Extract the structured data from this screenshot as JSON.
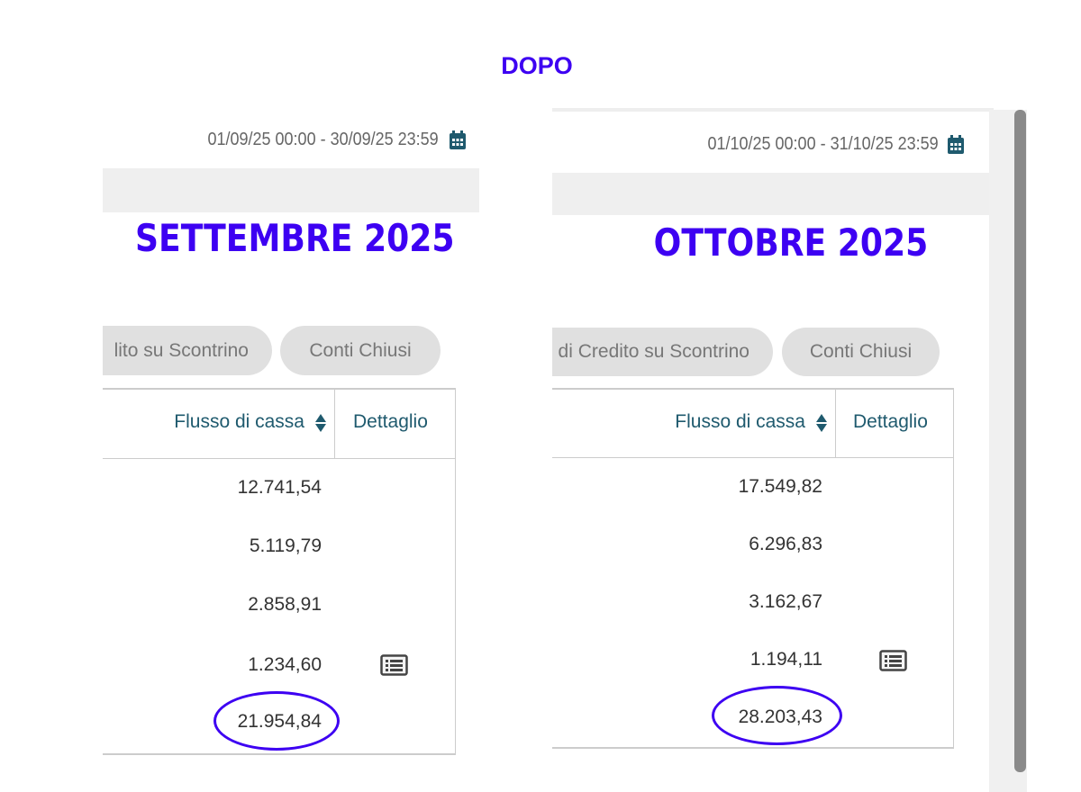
{
  "heading": "DOPO",
  "colors": {
    "accent": "#3d00f2",
    "header_text": "#1f5a6e",
    "calendar_icon": "#1f5a6e"
  },
  "panels": [
    {
      "date_range": "01/09/25 00:00 - 30/09/25 23:59",
      "title": "SETTEMBRE 2025",
      "tabs": [
        "lito su Scontrino",
        "Conti Chiusi"
      ],
      "columns": [
        "Flusso di cassa",
        "Dettaglio"
      ],
      "rows": [
        "12.741,54",
        "5.119,79",
        "2.858,91",
        "1.234,60"
      ],
      "total": "21.954,84",
      "detail_icon": "list-icon"
    },
    {
      "date_range": "01/10/25 00:00 - 31/10/25 23:59",
      "title": "OTTOBRE 2025",
      "tabs": [
        "di Credito su Scontrino",
        "Conti Chiusi"
      ],
      "columns": [
        "Flusso di cassa",
        "Dettaglio"
      ],
      "rows": [
        "17.549,82",
        "6.296,83",
        "3.162,67",
        "1.194,11"
      ],
      "total": "28.203,43",
      "detail_icon": "list-icon"
    }
  ]
}
